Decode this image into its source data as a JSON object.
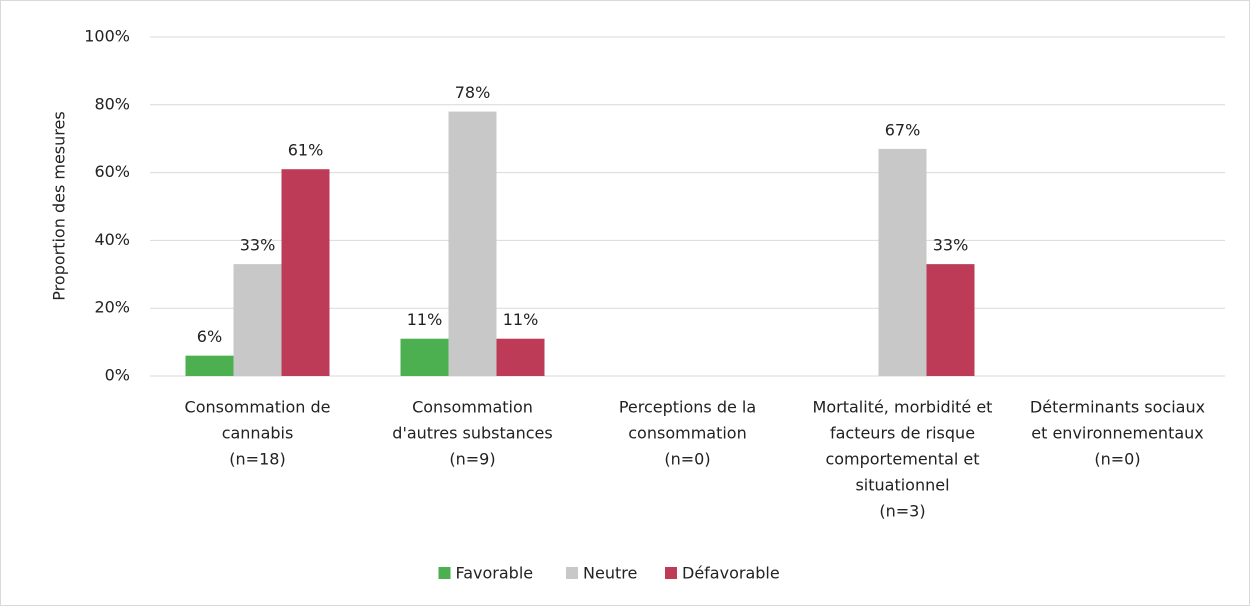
{
  "chart_data": {
    "type": "bar",
    "y_label": "Proportion des mesures",
    "categories": [
      [
        "Consommation de",
        "cannabis",
        "(n=18)"
      ],
      [
        "Consommation",
        "d'autres substances",
        "(n=9)"
      ],
      [
        "Perceptions de la",
        "consommation",
        "(n=0)"
      ],
      [
        "Mortalité, morbidité et",
        "facteurs de risque",
        "comportemental et",
        "situationnel",
        "(n=3)"
      ],
      [
        "Déterminants sociaux",
        "et environnementaux",
        "(n=0)"
      ]
    ],
    "series": [
      {
        "name": "Favorable",
        "color": "#4caf50",
        "values": [
          6,
          11,
          null,
          null,
          null
        ],
        "value_labels": [
          "6%",
          "11%",
          null,
          null,
          null
        ]
      },
      {
        "name": "Neutre",
        "color": "#c8c8c8",
        "values": [
          33,
          78,
          null,
          67,
          null
        ],
        "value_labels": [
          "33%",
          "78%",
          null,
          "67%",
          null
        ]
      },
      {
        "name": "Défavorable",
        "color": "#bd3b57",
        "values": [
          61,
          11,
          null,
          33,
          null
        ],
        "value_labels": [
          "61%",
          "11%",
          null,
          "33%",
          null
        ]
      }
    ],
    "ylim": [
      0,
      100
    ],
    "yticks": [
      {
        "value": 0,
        "label": "0%"
      },
      {
        "value": 20,
        "label": "20%"
      },
      {
        "value": 40,
        "label": "40%"
      },
      {
        "value": 60,
        "label": "60%"
      },
      {
        "value": 80,
        "label": "80%"
      },
      {
        "value": 100,
        "label": "100%"
      }
    ],
    "grid": true,
    "legend": "bottom"
  }
}
